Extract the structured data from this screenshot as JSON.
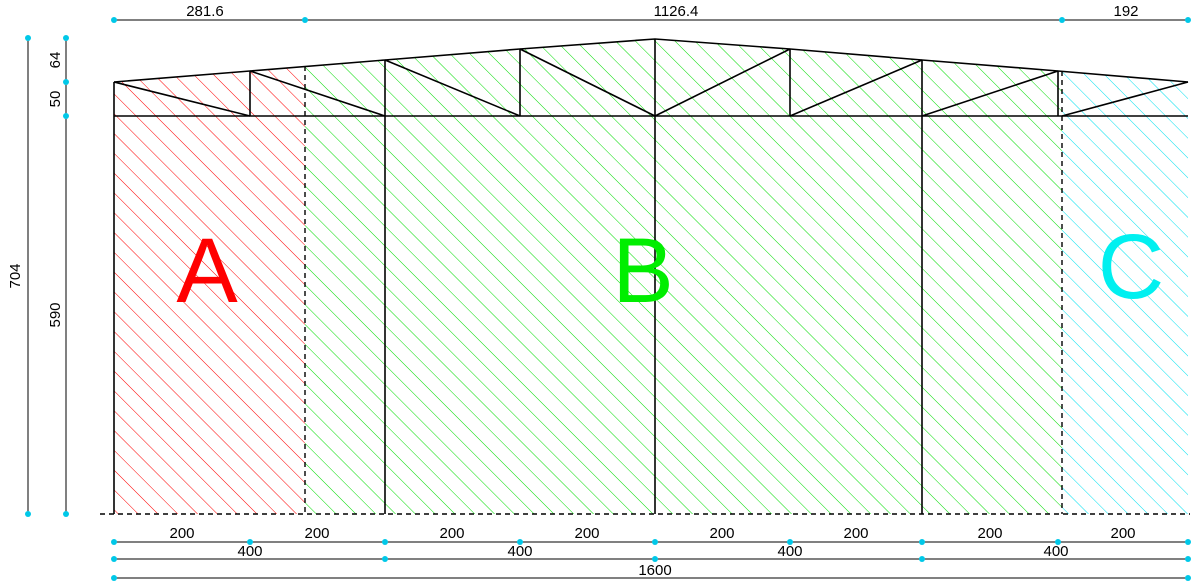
{
  "zones": [
    {
      "label": "A",
      "color": "#ff0000"
    },
    {
      "label": "B",
      "color": "#00ee00"
    },
    {
      "label": "C",
      "color": "#00f0f0"
    }
  ],
  "top_dimensions": [
    "281.6",
    "1126.4",
    "192"
  ],
  "left_dimensions": {
    "total": "704",
    "upper": "64",
    "middle": "50",
    "lower": "590"
  },
  "bottom_dimensions": {
    "row1": [
      "200",
      "200",
      "200",
      "200",
      "200",
      "200",
      "200",
      "200"
    ],
    "row2": [
      "400",
      "400",
      "400",
      "400"
    ],
    "total": "1600"
  },
  "colors": {
    "structure": "#000000",
    "dimension_tick": "#00c8e8"
  }
}
